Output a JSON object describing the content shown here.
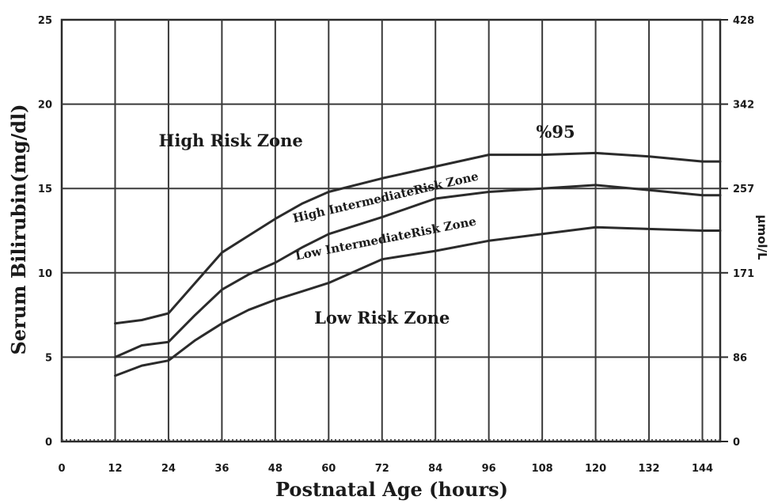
{
  "chart_data": {
    "type": "line",
    "xlabel": "Postnatal Age (hours)",
    "ylabel": "Serum Bilirubin(mg/dl)",
    "y2label": "µmol/L",
    "xlim": [
      0,
      148
    ],
    "ylim": [
      0,
      25
    ],
    "x_ticks": [
      "0",
      "12",
      "24",
      "36",
      "48",
      "60",
      "72",
      "84",
      "96",
      "108",
      "120",
      "132",
      "144"
    ],
    "y_ticks": [
      "0",
      "5",
      "10",
      "15",
      "20",
      "25"
    ],
    "y2_ticks": [
      {
        "label": "0",
        "y": 0
      },
      {
        "label": "86",
        "y": 5
      },
      {
        "label": "171",
        "y": 10
      },
      {
        "label": "257",
        "y": 15
      },
      {
        "label": "342",
        "y": 20
      },
      {
        "label": "428",
        "y": 25
      }
    ],
    "grid": true,
    "series": [
      {
        "name": "%95",
        "x": [
          12,
          18,
          24,
          30,
          36,
          42,
          48,
          54,
          60,
          72,
          84,
          96,
          108,
          120,
          132,
          144,
          148
        ],
        "y": [
          7.0,
          7.2,
          7.6,
          9.4,
          11.2,
          12.2,
          13.2,
          14.1,
          14.8,
          15.6,
          16.3,
          17.0,
          17.0,
          17.1,
          16.9,
          16.6,
          16.6
        ]
      },
      {
        "x": [
          12,
          18,
          24,
          30,
          36,
          42,
          48,
          54,
          60,
          72,
          84,
          96,
          108,
          120,
          132,
          144,
          148
        ],
        "y": [
          5.0,
          5.7,
          5.9,
          7.5,
          9.0,
          9.9,
          10.6,
          11.5,
          12.3,
          13.3,
          14.4,
          14.8,
          15.0,
          15.2,
          14.9,
          14.6,
          14.6
        ]
      },
      {
        "x": [
          12,
          18,
          24,
          30,
          36,
          42,
          48,
          54,
          60,
          72,
          84,
          96,
          108,
          120,
          132,
          144,
          148
        ],
        "y": [
          3.9,
          4.5,
          4.8,
          6.0,
          7.0,
          7.8,
          8.4,
          8.9,
          9.4,
          10.8,
          11.3,
          11.9,
          12.3,
          12.7,
          12.6,
          12.5,
          12.5
        ]
      }
    ],
    "annotations": [
      {
        "text": "High Risk Zone",
        "x": 38,
        "y": 17.5,
        "rotate": 0,
        "style": "zone"
      },
      {
        "text": "%95",
        "x": 111,
        "y": 18.0,
        "rotate": 0,
        "style": "zone"
      },
      {
        "text": "High IntermediateRisk Zone",
        "x": 73,
        "y": 14.25,
        "rotate": -13,
        "style": "band"
      },
      {
        "text": "Low  IntermediateRisk Zone",
        "x": 73,
        "y": 11.8,
        "rotate": -11,
        "style": "band"
      },
      {
        "text": "Low Risk Zone",
        "x": 72,
        "y": 7.0,
        "rotate": 0,
        "style": "zone"
      }
    ]
  }
}
